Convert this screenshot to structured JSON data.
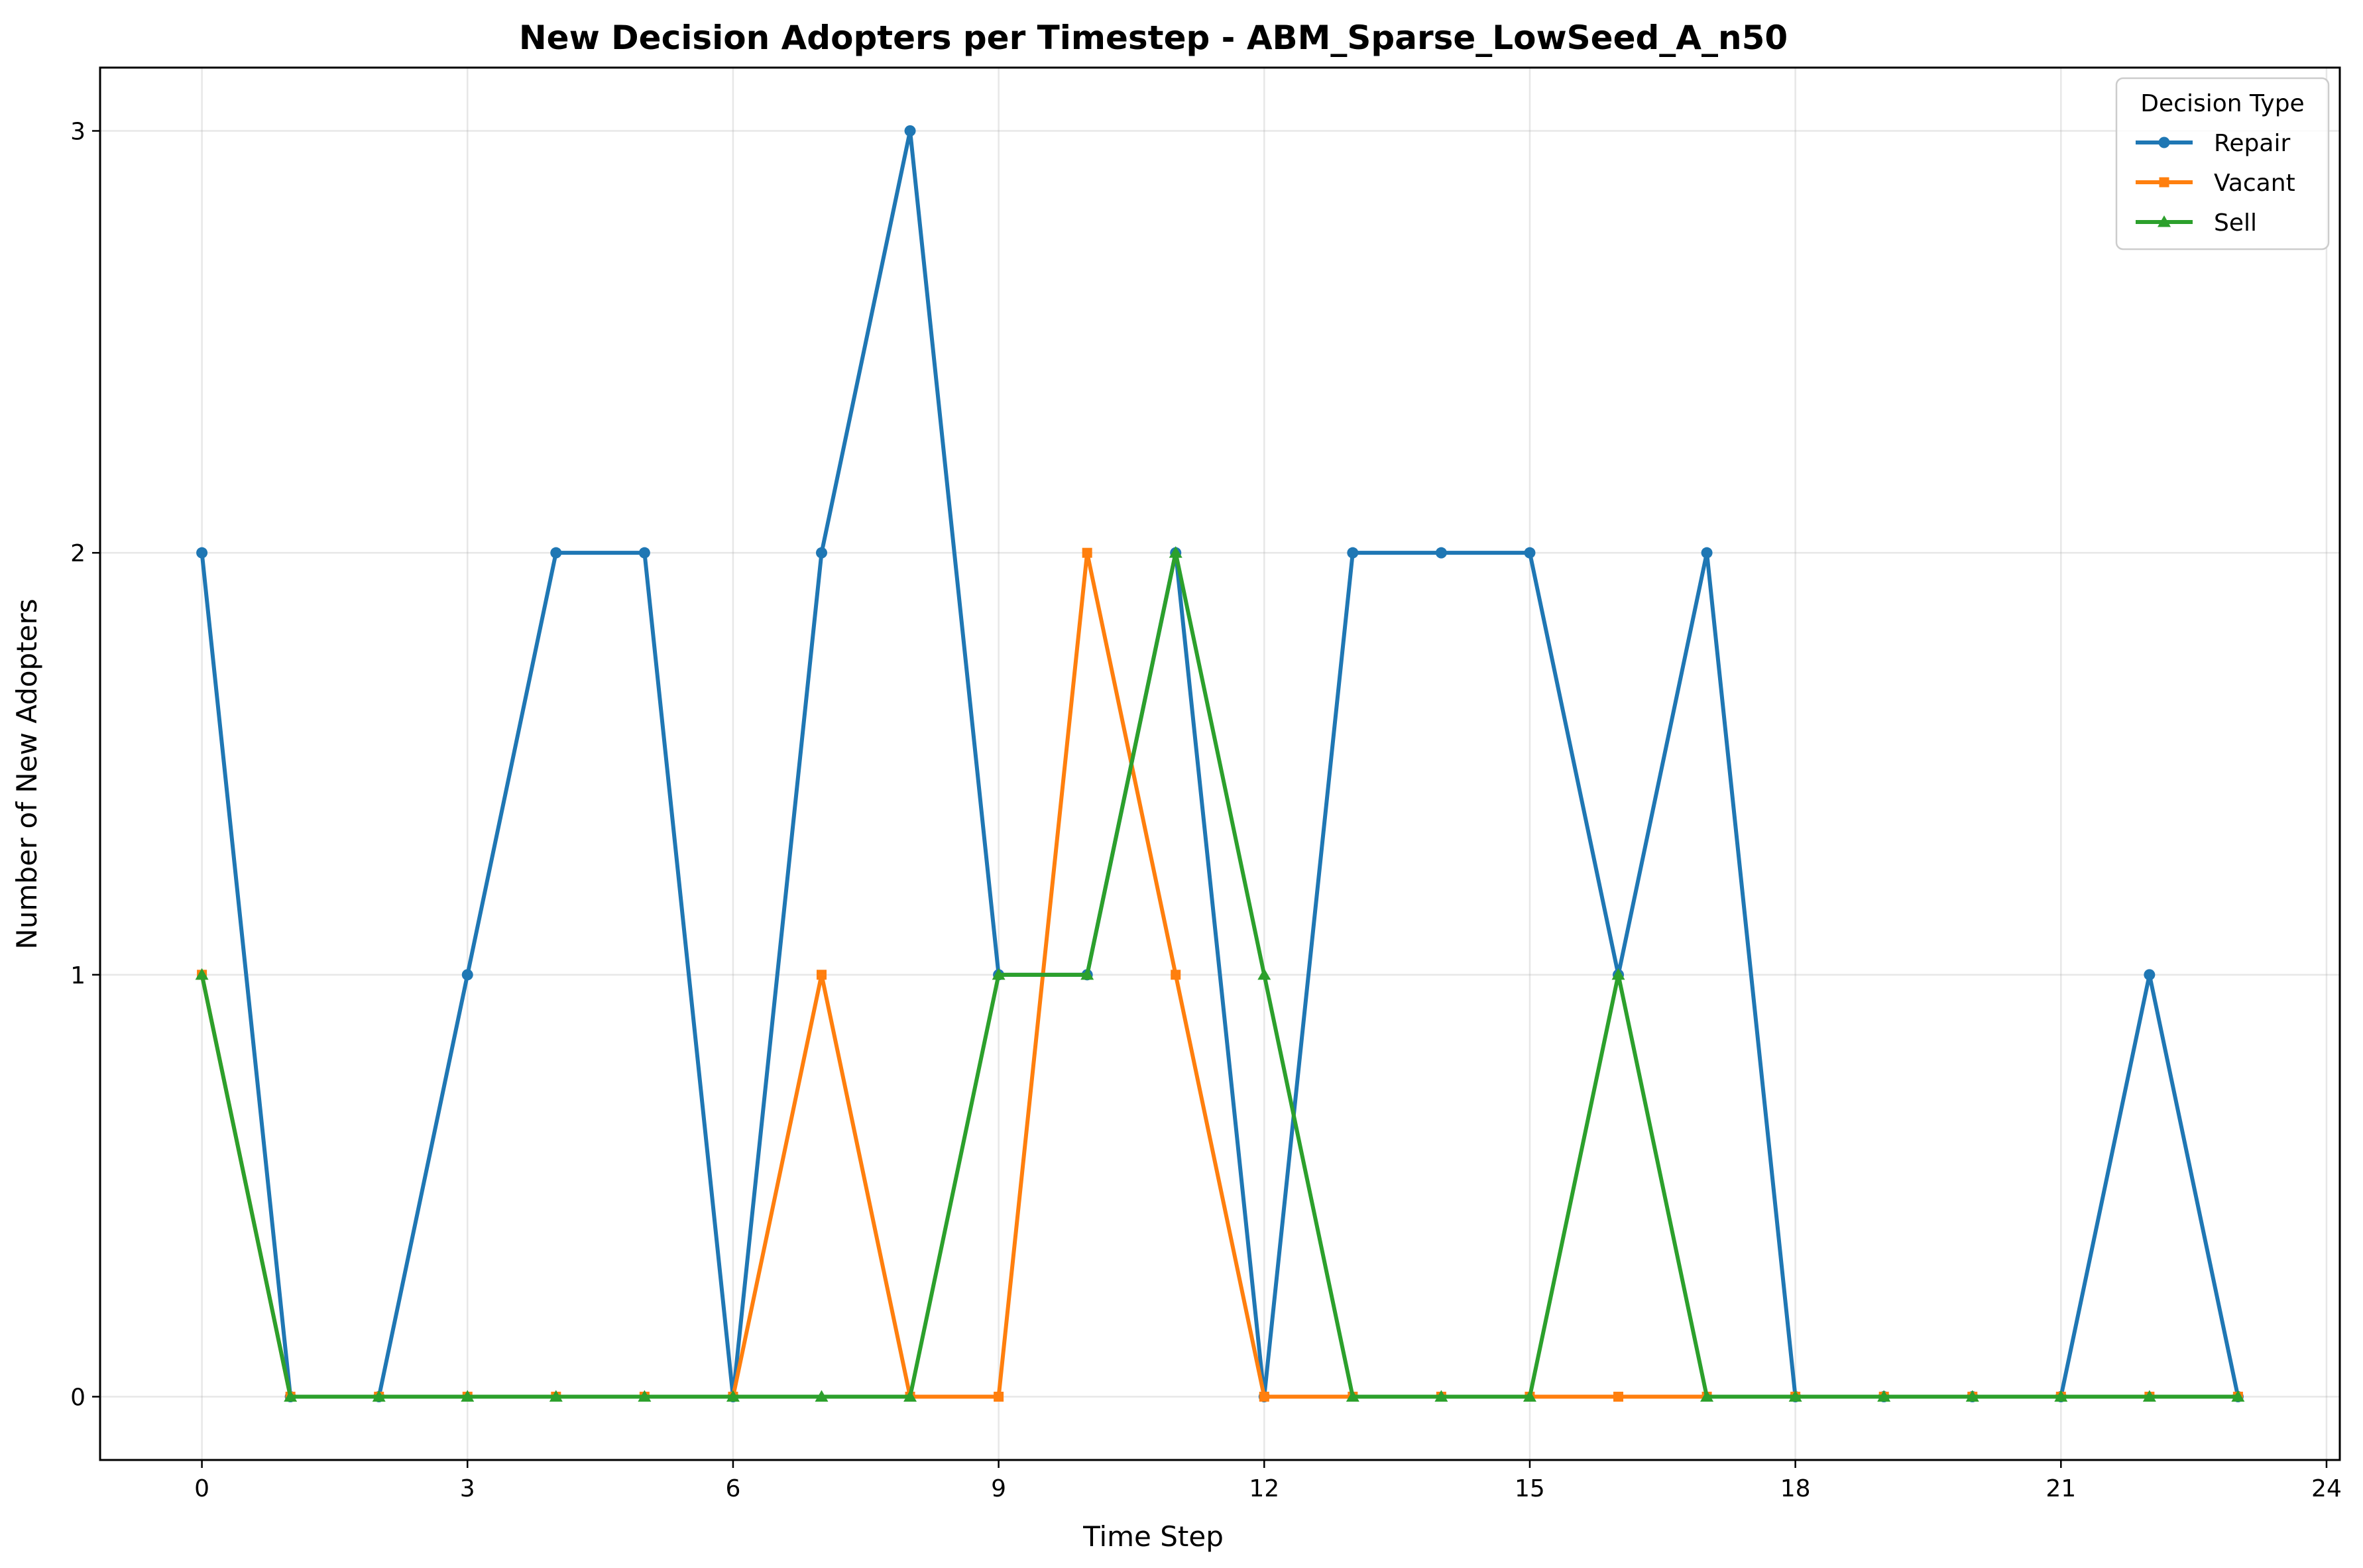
{
  "chart_data": {
    "type": "line",
    "title": "New Decision Adopters per Timestep - ABM_Sparse_LowSeed_A_n50",
    "xlabel": "Time Step",
    "ylabel": "Number of New Adopters",
    "x": [
      0,
      1,
      2,
      3,
      4,
      5,
      6,
      7,
      8,
      9,
      10,
      11,
      12,
      13,
      14,
      15,
      16,
      17,
      18,
      19,
      20,
      21,
      22,
      23
    ],
    "xlim": [
      -1.15,
      24.15
    ],
    "ylim": [
      -0.15,
      3.15
    ],
    "xticks": [
      0,
      3,
      6,
      9,
      12,
      15,
      18,
      21,
      24
    ],
    "yticks": [
      0,
      1,
      2,
      3
    ],
    "grid": true,
    "legend": {
      "title": "Decision Type",
      "placement": "top-right"
    },
    "series": [
      {
        "name": "Repair",
        "color": "#1f77b4",
        "marker": "circle",
        "values": [
          2,
          0,
          0,
          1,
          2,
          2,
          0,
          2,
          3,
          1,
          1,
          2,
          0,
          2,
          2,
          2,
          1,
          2,
          0,
          0,
          0,
          0,
          1,
          0
        ]
      },
      {
        "name": "Vacant",
        "color": "#ff7f0e",
        "marker": "square",
        "values": [
          1,
          0,
          0,
          0,
          0,
          0,
          0,
          1,
          0,
          0,
          2,
          1,
          0,
          0,
          0,
          0,
          0,
          0,
          0,
          0,
          0,
          0,
          0,
          0
        ]
      },
      {
        "name": "Sell",
        "color": "#2ca02c",
        "marker": "triangle",
        "values": [
          1,
          0,
          0,
          0,
          0,
          0,
          0,
          0,
          0,
          1,
          1,
          2,
          1,
          0,
          0,
          0,
          1,
          0,
          0,
          0,
          0,
          0,
          0,
          0
        ]
      }
    ]
  }
}
